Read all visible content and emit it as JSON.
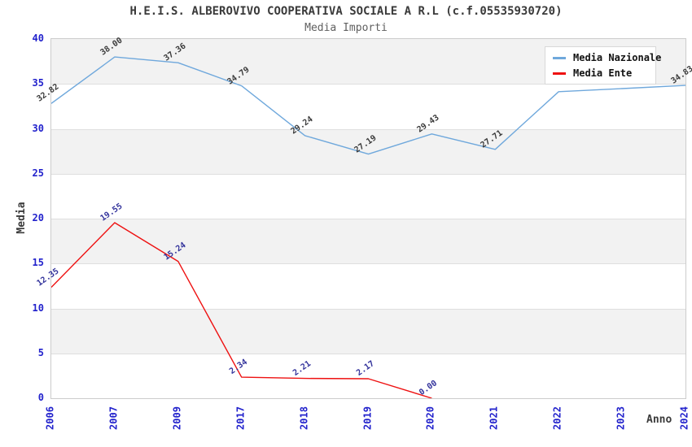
{
  "chart_data": {
    "type": "line",
    "title": "H.E.I.S. ALBEROVIVO COOPERATIVA SOCIALE A R.L (c.f.05535930720)",
    "subtitle": "Media Importi",
    "xlabel": "Anno",
    "ylabel": "Media",
    "categories": [
      "2006",
      "2007",
      "2009",
      "2017",
      "2018",
      "2019",
      "2020",
      "2021",
      "2022",
      "2023",
      "2024"
    ],
    "series": [
      {
        "name": "Media Nazionale",
        "color": "#6fa8dc",
        "label_color": "#3a3a3a",
        "values": [
          32.82,
          38.0,
          37.36,
          34.79,
          29.24,
          27.19,
          29.43,
          27.71,
          34.14,
          34.48,
          34.83
        ]
      },
      {
        "name": "Media Ente",
        "color": "#ee1111",
        "label_color": "#32329b",
        "values": [
          12.35,
          19.55,
          15.24,
          2.34,
          2.21,
          2.17,
          0.0,
          null,
          null,
          null,
          null
        ]
      }
    ],
    "ylim": [
      0,
      40
    ],
    "ytick_step": 5,
    "yticks": [
      "0",
      "5",
      "10",
      "15",
      "20",
      "25",
      "30",
      "35",
      "40"
    ],
    "grid": "horizontal-bands-alternating",
    "legend_position": "top-right",
    "labels_hidden_by_legend": {
      "series": "Media Nazionale",
      "categories": [
        "2022",
        "2023"
      ]
    }
  },
  "colors": {
    "title": "#3a3a3a",
    "subtitle": "#606060",
    "tick_label": "#2222cc",
    "axis_title": "#3a3a3a",
    "band_gray": "#f2f2f2",
    "band_white": "#ffffff",
    "gridline": "#dfdfdf",
    "plot_border": "#cccccc",
    "legend_border": "#d8d8d8",
    "legend_text": "#111111"
  }
}
